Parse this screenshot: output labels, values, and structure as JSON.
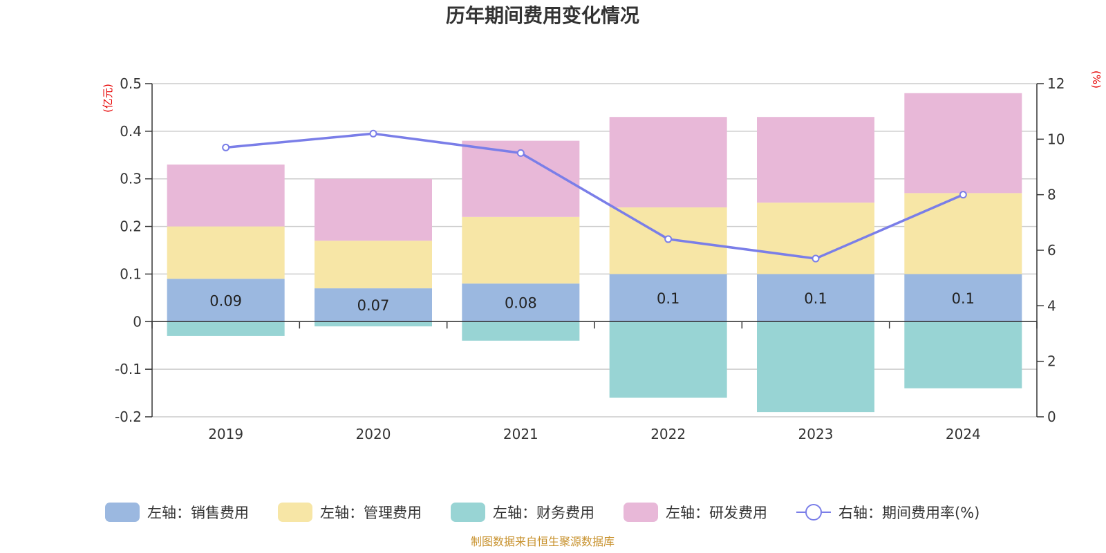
{
  "chart_data": {
    "type": "bar",
    "title": "历年期间费用变化情况",
    "categories": [
      "2019",
      "2020",
      "2021",
      "2022",
      "2023",
      "2024"
    ],
    "series": [
      {
        "name": "左轴：销售费用",
        "type": "bar",
        "axis": "left",
        "color": "#9bb8e0",
        "values": [
          0.09,
          0.07,
          0.08,
          0.1,
          0.1,
          0.1
        ],
        "labels": [
          "0.09",
          "0.07",
          "0.08",
          "0.1",
          "0.1",
          "0.1"
        ]
      },
      {
        "name": "左轴：管理费用",
        "type": "bar",
        "axis": "left",
        "color": "#f7e6a6",
        "values": [
          0.11,
          0.1,
          0.14,
          0.14,
          0.15,
          0.17
        ]
      },
      {
        "name": "左轴：财务费用",
        "type": "bar",
        "axis": "left",
        "color": "#98d4d4",
        "values": [
          -0.03,
          -0.01,
          -0.04,
          -0.16,
          -0.19,
          -0.14
        ]
      },
      {
        "name": "左轴：研发费用",
        "type": "bar",
        "axis": "left",
        "color": "#e8b8d8",
        "values": [
          0.13,
          0.13,
          0.16,
          0.19,
          0.18,
          0.21
        ]
      },
      {
        "name": "右轴：期间费用率(%)",
        "type": "line",
        "axis": "right",
        "color": "#7a7ee8",
        "values": [
          9.7,
          10.2,
          9.5,
          6.4,
          5.7,
          8.0
        ]
      }
    ],
    "left_axis": {
      "unit": "(亿元)",
      "ylim": [
        -0.2,
        0.5
      ],
      "ticks": [
        0.5,
        0.4,
        0.3,
        0.2,
        0.1,
        0,
        -0.1,
        -0.2
      ],
      "tick_labels": [
        "0.5",
        "0.4",
        "0.3",
        "0.2",
        "0.1",
        "0",
        "-0.1",
        "-0.2"
      ]
    },
    "right_axis": {
      "unit": "(%)",
      "ylim": [
        0,
        12
      ],
      "ticks": [
        12,
        10,
        8,
        6,
        4,
        2,
        0
      ],
      "tick_labels": [
        "12",
        "10",
        "8",
        "6",
        "4",
        "2",
        "0"
      ]
    },
    "grid": true,
    "legend_position": "bottom"
  },
  "source": "制图数据来自恒生聚源数据库"
}
